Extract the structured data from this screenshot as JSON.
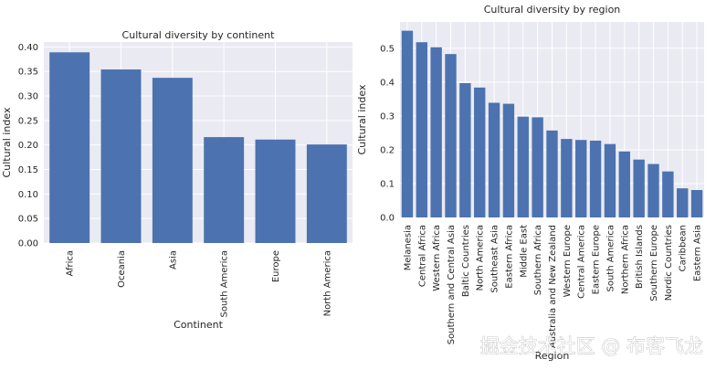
{
  "chart_data": [
    {
      "type": "bar",
      "title": "Cultural diversity by continent",
      "xlabel": "Continent",
      "ylabel": "Cultural index",
      "categories": [
        "Africa",
        "Oceania",
        "Asia",
        "South America",
        "Europe",
        "North America"
      ],
      "values": [
        0.389,
        0.354,
        0.337,
        0.216,
        0.211,
        0.201
      ],
      "ylim": [
        0,
        0.41
      ],
      "yticks": [
        "0.00",
        "0.05",
        "0.10",
        "0.15",
        "0.20",
        "0.25",
        "0.30",
        "0.35",
        "0.40"
      ],
      "grid": true,
      "colors": {
        "bar": "#4c72b0",
        "plot_bg": "#eaeaf2",
        "grid": "#ffffff"
      }
    },
    {
      "type": "bar",
      "title": "Cultural diversity by region",
      "xlabel": "Region",
      "ylabel": "Cultural index",
      "categories": [
        "Melanesia",
        "Central Africa",
        "Western Africa",
        "Southern and Central Asia",
        "Baltic Countries",
        "North America",
        "Southeast Asia",
        "Eastern Africa",
        "Middle East",
        "Southern Africa",
        "Australia and New Zealand",
        "Western Europe",
        "Central America",
        "Eastern Europe",
        "South America",
        "Northern Africa",
        "British Islands",
        "Southern Europe",
        "Nordic Countries",
        "Caribbean",
        "Eastern Asia"
      ],
      "values": [
        0.552,
        0.518,
        0.503,
        0.483,
        0.397,
        0.384,
        0.339,
        0.336,
        0.298,
        0.296,
        0.257,
        0.232,
        0.229,
        0.227,
        0.217,
        0.195,
        0.171,
        0.158,
        0.136,
        0.086,
        0.081
      ],
      "ylim": [
        0,
        0.578
      ],
      "yticks": [
        "0.0",
        "0.1",
        "0.2",
        "0.3",
        "0.4",
        "0.5"
      ],
      "grid": true,
      "colors": {
        "bar": "#4c72b0",
        "plot_bg": "#eaeaf2",
        "grid": "#ffffff"
      }
    }
  ],
  "watermark": "掘金技术社区 @ 布客飞龙"
}
